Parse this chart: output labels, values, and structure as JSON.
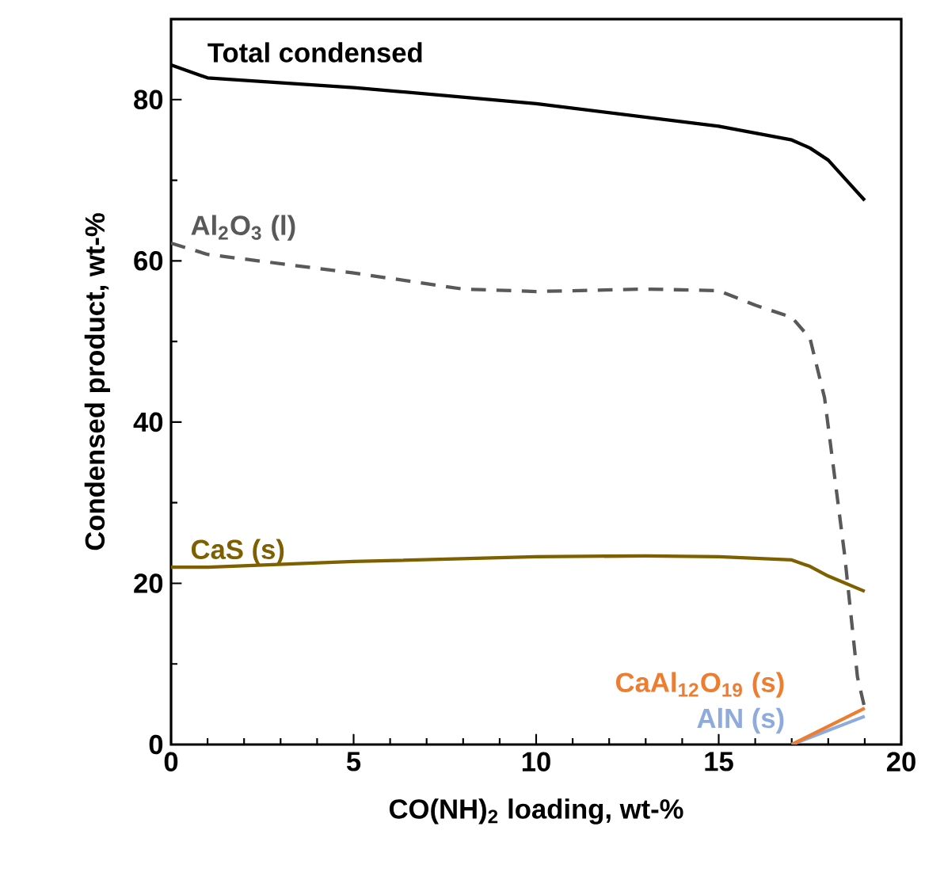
{
  "chart_data": {
    "type": "line",
    "xlabel": "CO(NH)$_{2}$ loading, wt-%",
    "ylabel": "Condensed product, wt-%",
    "xlim": [
      0,
      20
    ],
    "ylim": [
      0,
      90
    ],
    "xticks": [
      0,
      5,
      10,
      15,
      20
    ],
    "yticks": [
      0,
      20,
      40,
      60,
      80
    ],
    "legend": false,
    "grid": false,
    "series": [
      {
        "name": "Total condensed",
        "color": "#000000",
        "line_style": "solid",
        "x": [
          0,
          1,
          5,
          10,
          15,
          17,
          17.5,
          18,
          18.5,
          19
        ],
        "values": [
          84.3,
          82.7,
          81.5,
          79.5,
          76.7,
          75,
          74,
          72.5,
          70,
          67.5
        ]
      },
      {
        "name": "Al$_{2}$O$_{3}$ (l)",
        "color": "#595959",
        "line_style": "dashed",
        "x": [
          0,
          1,
          5,
          8,
          10,
          13,
          15,
          16,
          17,
          17.5,
          17.9,
          18.45,
          18.8,
          19
        ],
        "values": [
          62.2,
          60.8,
          58.5,
          56.5,
          56.2,
          56.5,
          56.3,
          54.5,
          53,
          50.4,
          43,
          23.5,
          8.4,
          4.5
        ]
      },
      {
        "name": "CaS (s)",
        "color": "#7f6000",
        "line_style": "solid",
        "x": [
          0,
          1,
          5,
          10,
          13,
          15,
          17,
          17.5,
          18,
          19
        ],
        "values": [
          22,
          22,
          22.7,
          23.3,
          23.4,
          23.3,
          22.9,
          22.1,
          20.9,
          19
        ]
      },
      {
        "name": "AlN (s)",
        "color": "#8faadc",
        "line_style": "solid",
        "x": [
          17,
          19
        ],
        "values": [
          0,
          3.5
        ]
      },
      {
        "name": "CaAl$_{12}$O$_{19}$ (s)",
        "color": "#ed7d31",
        "line_style": "solid",
        "x": [
          17,
          19
        ],
        "values": [
          0,
          4.5
        ]
      }
    ]
  }
}
